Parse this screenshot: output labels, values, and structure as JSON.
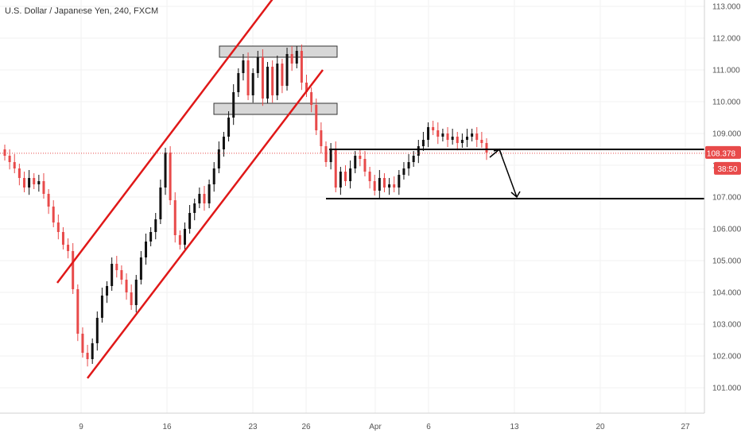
{
  "header": {
    "title": "U.S. Dollar / Japanese Yen, 240, FXCM"
  },
  "price_badge": {
    "value": "108.378",
    "countdown": "38:50",
    "color": "#e84a4a"
  },
  "colors": {
    "up": "#111111",
    "down": "#e84a4a",
    "channel": "#e01818",
    "zone_fill": "#d7d7d7",
    "level": "#000000"
  },
  "chart_data": {
    "type": "candlestick",
    "y_ticks": [
      "113.000",
      "112.000",
      "111.000",
      "110.000",
      "109.000",
      "108.000",
      "107.000",
      "106.000",
      "105.000",
      "104.000",
      "103.000",
      "102.000",
      "101.000"
    ],
    "x_ticks": [
      "9",
      "16",
      "23",
      "26",
      "Apr",
      "6",
      "13",
      "20",
      "27"
    ],
    "ylim": [
      100.2,
      113.2
    ],
    "current_price": 108.378,
    "candle_closes": [
      108.3,
      108.1,
      107.9,
      107.6,
      107.3,
      107.6,
      107.4,
      107.5,
      107.1,
      106.7,
      106.2,
      105.9,
      105.5,
      105.3,
      104.1,
      102.7,
      102.1,
      101.9,
      102.4,
      103.2,
      103.9,
      104.2,
      104.9,
      104.7,
      104.4,
      104.0,
      103.6,
      104.4,
      105.1,
      105.6,
      105.9,
      106.3,
      107.3,
      108.4,
      106.9,
      105.8,
      105.5,
      106.0,
      106.5,
      106.8,
      107.1,
      106.8,
      107.4,
      107.9,
      108.5,
      108.9,
      109.5,
      110.3,
      110.9,
      111.3,
      110.2,
      110.9,
      111.4,
      110.1,
      111.1,
      110.2,
      111.2,
      110.5,
      111.5,
      111.2,
      111.6,
      110.6,
      110.3,
      109.9,
      109.1,
      108.6,
      108.1,
      108.5,
      107.3,
      107.8,
      107.5,
      107.9,
      108.3,
      108.2,
      107.8,
      107.5,
      107.2,
      107.6,
      107.3,
      107.4,
      107.3,
      107.7,
      107.9,
      108.1,
      108.3,
      108.6,
      108.8,
      109.2,
      109.1,
      108.9,
      109.0,
      108.8,
      108.9,
      108.7,
      108.8,
      108.9,
      109.0,
      108.8,
      108.7,
      108.4
    ],
    "channel_upper": {
      "from": [
        "2020-03-09",
        104.3
      ],
      "to": [
        "2020-03-24",
        113.4
      ]
    },
    "channel_lower": {
      "from": [
        "2020-03-10",
        101.3
      ],
      "to": [
        "2020-03-27",
        111.0
      ]
    },
    "resistance_zones": [
      {
        "low": 111.4,
        "high": 111.75
      },
      {
        "low": 109.6,
        "high": 109.95
      }
    ],
    "horizontal_levels": [
      108.5,
      106.95
    ],
    "projection_arrow": {
      "from": 108.4,
      "to": 107.0
    }
  }
}
